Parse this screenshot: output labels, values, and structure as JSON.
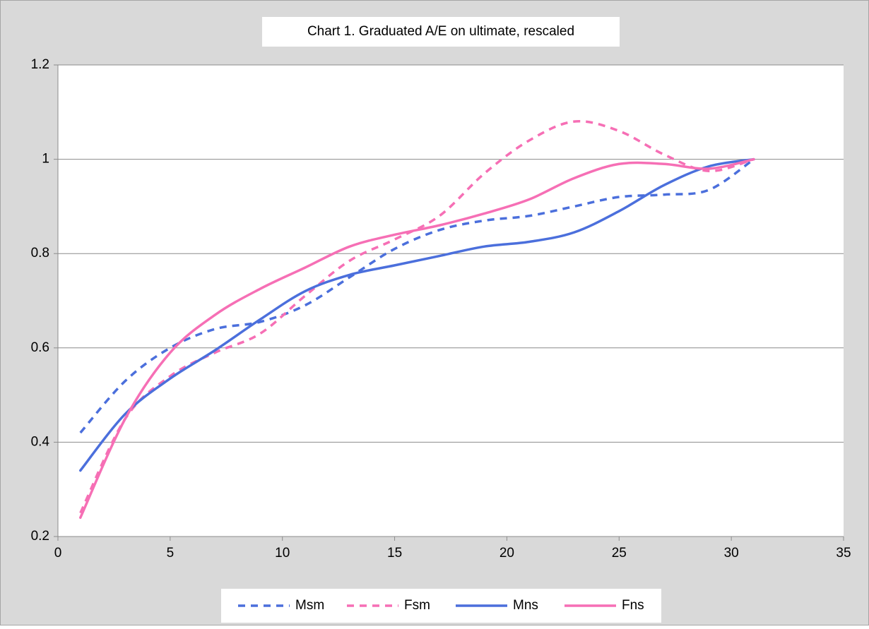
{
  "chart_data": {
    "type": "line",
    "title": "Chart 1. Graduated A/E on ultimate, rescaled",
    "x": [
      1,
      3,
      5,
      7,
      9,
      11,
      13,
      15,
      17,
      19,
      21,
      23,
      25,
      27,
      29,
      31
    ],
    "series": [
      {
        "name": "Msm",
        "color": "#4b6fdc",
        "dashed": true,
        "values": [
          0.42,
          0.53,
          0.6,
          0.64,
          0.655,
          0.69,
          0.75,
          0.81,
          0.85,
          0.87,
          0.88,
          0.9,
          0.92,
          0.925,
          0.935,
          1.0
        ]
      },
      {
        "name": "Fsm",
        "color": "#f66fb5",
        "dashed": true,
        "values": [
          0.25,
          0.45,
          0.54,
          0.59,
          0.63,
          0.71,
          0.785,
          0.83,
          0.88,
          0.97,
          1.04,
          1.08,
          1.06,
          1.01,
          0.975,
          1.0
        ]
      },
      {
        "name": "Mns",
        "color": "#4b6fdc",
        "dashed": false,
        "values": [
          0.34,
          0.46,
          0.535,
          0.595,
          0.66,
          0.72,
          0.755,
          0.775,
          0.795,
          0.815,
          0.825,
          0.845,
          0.89,
          0.945,
          0.985,
          1.0
        ]
      },
      {
        "name": "Fns",
        "color": "#f66fb5",
        "dashed": false,
        "values": [
          0.24,
          0.45,
          0.59,
          0.67,
          0.725,
          0.77,
          0.815,
          0.84,
          0.86,
          0.885,
          0.915,
          0.96,
          0.99,
          0.99,
          0.98,
          1.0
        ]
      }
    ],
    "xlim": [
      0,
      35
    ],
    "xticks": [
      0,
      5,
      10,
      15,
      20,
      25,
      30,
      35
    ],
    "ylim": [
      0.2,
      1.2
    ],
    "yticks": [
      0.2,
      0.4,
      0.6,
      0.8,
      1,
      1.2
    ],
    "grid": true,
    "legend": "bottom"
  }
}
